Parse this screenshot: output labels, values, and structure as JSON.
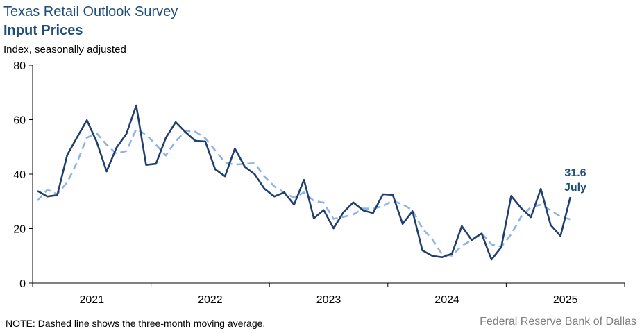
{
  "header": {
    "title": "Texas Retail Outlook Survey",
    "subtitle": "Input Prices",
    "units": "Index, seasonally adjusted"
  },
  "footer": {
    "note": "NOTE: Dashed line shows the three-month moving average.",
    "source": "Federal Reserve Bank of Dallas"
  },
  "colors": {
    "index_line": "#1f3f6e",
    "moving_avg_line": "#8fb4e3",
    "title": "#1f4e79",
    "source": "#7f7f7f"
  },
  "chart_data": {
    "type": "line",
    "title": "Texas Retail Outlook Survey",
    "subtitle": "Input Prices",
    "ylabel": "Index, seasonally adjusted",
    "ylim": [
      0,
      80
    ],
    "yticks": [
      0,
      20,
      40,
      60,
      80
    ],
    "x_start": "2021-01",
    "x_end": "2025-07",
    "xlim": [
      "2021-01",
      "2025-12"
    ],
    "year_ticks": [
      "2021",
      "2022",
      "2023",
      "2024",
      "2025"
    ],
    "grid": false,
    "legend": "none",
    "series": [
      {
        "style": "solid",
        "values": [
          33.8,
          31.8,
          32.3,
          47.0,
          53.5,
          59.8,
          51.8,
          41.0,
          49.7,
          54.8,
          65.2,
          43.4,
          43.8,
          53.3,
          59.1,
          55.4,
          52.2,
          52.0,
          41.8,
          39.2,
          49.4,
          42.7,
          40.0,
          34.6,
          31.8,
          33.3,
          28.8,
          37.9,
          23.8,
          26.8,
          20.1,
          26.0,
          29.6,
          26.7,
          25.7,
          32.6,
          32.4,
          21.7,
          26.4,
          12.0,
          10.0,
          9.5,
          10.8,
          20.9,
          15.8,
          18.2,
          8.6,
          13.2,
          32.0,
          27.6,
          24.2,
          34.6,
          21.3,
          17.3,
          31.6
        ]
      },
      {
        "style": "dashed",
        "values": [
          30.3,
          34.3,
          32.6,
          37.0,
          44.3,
          53.4,
          55.0,
          50.8,
          47.5,
          48.5,
          56.5,
          54.5,
          50.8,
          46.8,
          52.1,
          55.9,
          55.6,
          53.2,
          48.7,
          44.3,
          43.5,
          43.8,
          44.0,
          39.1,
          35.5,
          33.2,
          31.3,
          33.3,
          30.2,
          29.5,
          23.6,
          24.3,
          25.2,
          27.4,
          27.3,
          28.3,
          30.2,
          28.9,
          26.8,
          20.0,
          16.1,
          10.5,
          10.1,
          13.7,
          15.8,
          18.3,
          14.2,
          13.3,
          17.9,
          24.3,
          27.9,
          28.8,
          26.7,
          24.4,
          23.4
        ]
      }
    ],
    "annotation": {
      "value": "31.6",
      "label": "July"
    }
  }
}
